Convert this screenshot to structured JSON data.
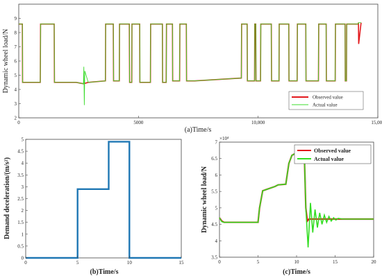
{
  "chart_data": [
    {
      "id": "a",
      "type": "line",
      "caption": "(a)Time/s",
      "ylabel": "Dynamic wheel load/N",
      "xlim": [
        0,
        15000
      ],
      "ylim": [
        2,
        10
      ],
      "x_tick_labels": [
        "0",
        "5000",
        "10,000",
        "15,000"
      ],
      "y_tick_labels": [
        "2",
        "3",
        "4",
        "5",
        "6",
        "7",
        "8",
        "9"
      ],
      "legend": {
        "placement": "bottom-right",
        "entries": [
          "Observed value",
          "Actual value"
        ]
      },
      "series": [
        {
          "name": "Observed value",
          "color": "#e2181c",
          "x": [
            0,
            150,
            160,
            900,
            910,
            1480,
            1490,
            2400,
            2700,
            2900,
            3620,
            3630,
            3950,
            3960,
            4200,
            4210,
            4620,
            4630,
            4720,
            4730,
            5050,
            5060,
            5500,
            5510,
            6000,
            6010,
            6160,
            6170,
            6420,
            6430,
            6720,
            6730,
            7000,
            7010,
            7340,
            7350,
            9300,
            9310,
            9540,
            9550,
            9850,
            9860,
            9900,
            9910,
            10100,
            10110,
            10550,
            10560,
            10870,
            10880,
            11280,
            11290,
            11630,
            11640,
            11990,
            12000,
            12520,
            12530,
            12840,
            12850,
            13220,
            13230,
            13630,
            13640,
            13690,
            13700,
            14180,
            14190,
            14200,
            14300
          ],
          "y": [
            8.6,
            8.6,
            4.5,
            4.5,
            8.6,
            8.6,
            4.5,
            4.5,
            4.4,
            4.5,
            4.6,
            8.6,
            8.6,
            4.6,
            4.6,
            8.6,
            8.6,
            4.5,
            4.5,
            8.6,
            8.6,
            4.5,
            4.5,
            8.6,
            8.6,
            4.5,
            4.5,
            8.6,
            8.6,
            4.6,
            4.6,
            8.6,
            8.6,
            4.6,
            4.6,
            4.6,
            4.8,
            8.6,
            8.6,
            4.6,
            4.6,
            8.6,
            8.6,
            4.6,
            4.6,
            8.6,
            8.6,
            4.6,
            4.6,
            8.6,
            8.6,
            4.6,
            4.6,
            8.6,
            8.6,
            4.6,
            4.6,
            8.6,
            8.6,
            4.6,
            4.6,
            8.6,
            8.6,
            4.6,
            4.6,
            8.6,
            8.6,
            8.7,
            7.2,
            8.7
          ]
        },
        {
          "name": "Actual value",
          "color": "#3ddc2e",
          "x": [
            0,
            150,
            160,
            900,
            910,
            1480,
            1490,
            2400,
            2700,
            2720,
            2740,
            2760,
            2900,
            3620,
            3630,
            3950,
            3960,
            4200,
            4210,
            4620,
            4630,
            4720,
            4730,
            5050,
            5060,
            5500,
            5510,
            6000,
            6010,
            6160,
            6170,
            6420,
            6430,
            6720,
            6730,
            7000,
            7010,
            7340,
            7350,
            9300,
            9310,
            9540,
            9550,
            9850,
            9860,
            9900,
            9910,
            10100,
            10110,
            10550,
            10560,
            10870,
            10880,
            11280,
            11290,
            11630,
            11640,
            11990,
            12000,
            12520,
            12530,
            12840,
            12850,
            13220,
            13230,
            13630,
            13640,
            13690,
            13700,
            14180,
            14190,
            14300
          ],
          "y": [
            8.6,
            8.6,
            4.5,
            4.5,
            8.6,
            8.6,
            4.5,
            4.5,
            4.4,
            5.6,
            2.9,
            5.3,
            4.5,
            4.6,
            8.6,
            8.6,
            4.6,
            4.6,
            8.6,
            8.6,
            4.5,
            4.5,
            8.6,
            8.6,
            4.5,
            4.5,
            8.6,
            8.6,
            4.5,
            4.5,
            8.6,
            8.6,
            4.6,
            4.6,
            8.6,
            8.6,
            4.6,
            4.6,
            4.6,
            4.8,
            8.6,
            8.6,
            4.6,
            4.6,
            8.6,
            8.6,
            4.6,
            4.6,
            8.6,
            8.6,
            4.6,
            4.6,
            8.6,
            8.6,
            4.6,
            4.6,
            8.6,
            8.6,
            4.6,
            4.6,
            8.6,
            8.6,
            4.6,
            4.6,
            8.6,
            8.6,
            4.6,
            4.6,
            8.6,
            8.6,
            8.7,
            8.7
          ]
        }
      ]
    },
    {
      "id": "b",
      "type": "line",
      "caption": "(b)Time/s",
      "ylabel": "Demand deceleration/(m/s²)",
      "xlim": [
        0,
        15
      ],
      "ylim": [
        0,
        5
      ],
      "x_tick_labels": [
        "0",
        "5",
        "10",
        "15"
      ],
      "y_tick_labels": [
        "0",
        "0.5",
        "1",
        "1.5",
        "2",
        "2.5",
        "3",
        "3.5",
        "4",
        "4.5",
        "5"
      ],
      "series": [
        {
          "color": "#1f77b4",
          "x": [
            0,
            5,
            5,
            8,
            8,
            10,
            10,
            15
          ],
          "y": [
            0,
            0,
            2.9,
            2.9,
            4.9,
            4.9,
            0,
            0
          ]
        }
      ]
    },
    {
      "id": "c",
      "type": "line",
      "caption": "(c)Time/s",
      "ylabel": "Dynamic wheel load/N",
      "y_exponent": "×10⁴",
      "xlim": [
        0,
        20
      ],
      "ylim": [
        3.5,
        7
      ],
      "x_tick_labels": [
        "0",
        "5",
        "10",
        "15",
        "20"
      ],
      "y_tick_labels": [
        "3.5",
        "4",
        "4.5",
        "5",
        "5.5",
        "6",
        "6.5",
        "7"
      ],
      "legend": {
        "placement": "top-right",
        "entries": [
          "Observed value",
          "Actual value"
        ]
      },
      "series": [
        {
          "name": "Observed value",
          "color": "#e2181c",
          "x": [
            0,
            0.3,
            0.6,
            1,
            5,
            5.2,
            5.6,
            7.2,
            7.6,
            8.6,
            9,
            9.4,
            9.8,
            10.4,
            11,
            11.2,
            11.4,
            11.6,
            12,
            13,
            20
          ],
          "y": [
            4.7,
            4.6,
            4.56,
            4.56,
            4.56,
            5,
            5.52,
            5.65,
            5.7,
            5.72,
            6.35,
            6.6,
            6.65,
            6.68,
            6.68,
            5,
            4.6,
            4.66,
            4.66,
            4.66,
            4.66
          ]
        },
        {
          "name": "Actual value",
          "color": "#33dd22",
          "x": [
            0,
            0.3,
            0.6,
            1,
            5,
            5.2,
            5.6,
            7.2,
            7.6,
            8.6,
            9,
            9.4,
            9.8,
            10.4,
            11,
            11.2,
            11.5,
            11.8,
            12.1,
            12.4,
            12.7,
            13.0,
            13.3,
            13.6,
            13.9,
            14.2,
            14.5,
            14.8,
            15.1,
            15.4,
            16,
            20
          ],
          "y": [
            4.7,
            4.58,
            4.56,
            4.56,
            4.56,
            5,
            5.52,
            5.65,
            5.7,
            5.72,
            6.35,
            6.6,
            6.65,
            6.68,
            6.68,
            5,
            3.8,
            5.15,
            4.25,
            4.95,
            4.4,
            4.85,
            4.5,
            4.78,
            4.56,
            4.74,
            4.6,
            4.7,
            4.63,
            4.68,
            4.66,
            4.66
          ]
        }
      ]
    }
  ]
}
